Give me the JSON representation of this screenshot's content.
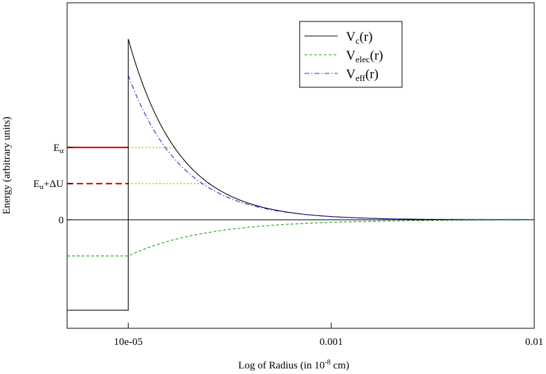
{
  "chart_data": {
    "type": "line",
    "title": "",
    "xlabel": {
      "base": "Log of Radius (in 10",
      "sup": "-8",
      "tail": " cm)"
    },
    "ylabel": "Energy (arbitrary units)",
    "x_scale": "log",
    "xlim": [
      5e-05,
      0.01
    ],
    "ylim": [
      -0.6,
      1.2
    ],
    "x_ticks": [
      {
        "value": 0.0001,
        "label": "10e-05"
      },
      {
        "value": 0.001,
        "label": "0.001"
      },
      {
        "value": 0.01,
        "label": "0.01"
      }
    ],
    "y_ticks": [
      {
        "value": 0.4,
        "main": "E",
        "sub": "α",
        "tail": ""
      },
      {
        "value": 0.2,
        "main": "E",
        "sub": "α",
        "tail": "+ΔU"
      },
      {
        "value": 0,
        "main": "0",
        "sub": "",
        "tail": ""
      }
    ],
    "r0": 0.0001,
    "series": [
      {
        "name": "Vc(r)",
        "label_main": "V",
        "label_sub": "c",
        "label_tail": "(r)",
        "color": "#000000",
        "dash": "",
        "peak": 1.0,
        "inside": -0.5,
        "decay": 1.75
      },
      {
        "name": "Velec(r)",
        "label_main": "V",
        "label_sub": "elec",
        "label_tail": "(r)",
        "color": "#1a9c1a",
        "dash": "4,3",
        "peak": -0.2,
        "inside": -0.2,
        "decay": 1.15
      },
      {
        "name": "Veff(r)",
        "label_main": "V",
        "label_sub": "eff",
        "label_tail": "(r)",
        "color": "#2525d6",
        "dash": "7,3,1.5,3",
        "peak": 0.8,
        "inside": null,
        "decay": 1.65
      }
    ],
    "levels": [
      {
        "name": "E_alpha",
        "y": 0.4,
        "color": "#e01010",
        "dash": "",
        "ext_color": "#f0b400",
        "ext_dash": "2,3"
      },
      {
        "name": "E_alpha+dU",
        "y": 0.2,
        "color": "#e01010",
        "dash": "9,5",
        "ext_color": "#f0b400",
        "ext_dash": "2,3"
      }
    ],
    "zero_line": true,
    "legend_position": "top-right"
  }
}
